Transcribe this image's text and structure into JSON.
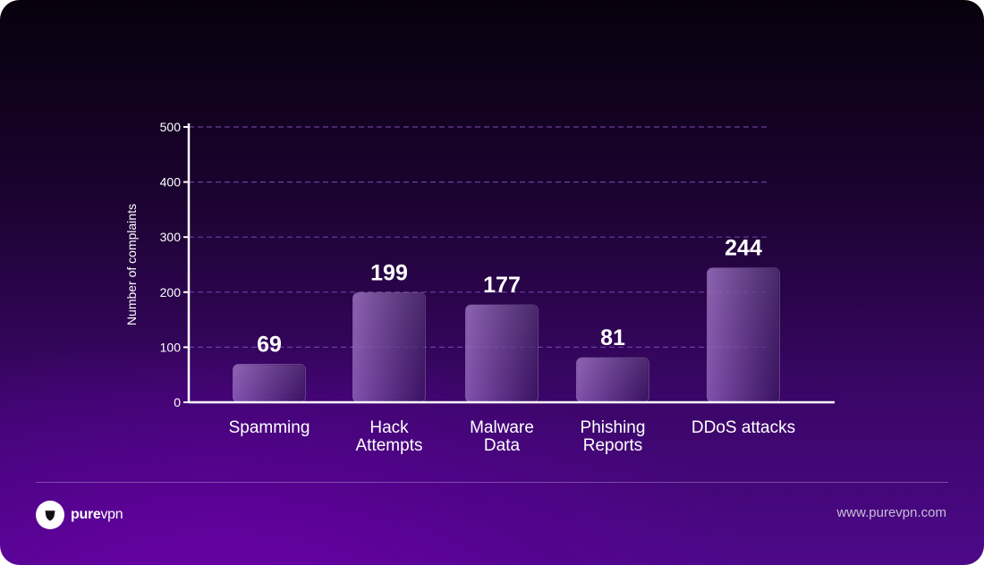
{
  "chart_data": {
    "type": "bar",
    "categories": [
      [
        "Spamming"
      ],
      [
        "Hack",
        "Attempts"
      ],
      [
        "Malware",
        "Data"
      ],
      [
        "Phishing",
        "Reports"
      ],
      [
        "DDoS attacks"
      ]
    ],
    "values": [
      69,
      199,
      177,
      81,
      244
    ],
    "value_labels": [
      "69",
      "199",
      "177",
      "81",
      "244"
    ],
    "ylabel": "Number of complaints",
    "ylim": [
      0,
      500
    ],
    "yticks": [
      0,
      100,
      200,
      300,
      400,
      500
    ],
    "grid": true,
    "grid_style": "dashed",
    "bar_color": "#8a5bb0",
    "grid_color": "#6a3fa0"
  },
  "footer": {
    "logo_bold": "pure",
    "logo_light": "vpn",
    "logo_icon": "shield-icon",
    "url": "www.purevpn.com"
  }
}
